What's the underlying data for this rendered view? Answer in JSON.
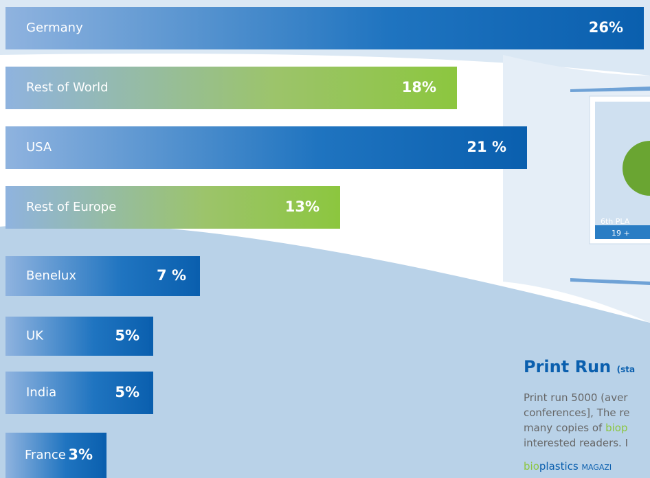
{
  "chart_data": {
    "type": "hbar",
    "categories": [
      "Germany",
      "Rest of World",
      "USA",
      "Rest of Europe",
      "Benelux",
      "UK",
      "India",
      "France"
    ],
    "values": [
      26,
      18,
      21,
      13,
      7,
      5,
      5,
      3
    ],
    "value_labels": [
      "26%",
      "18%",
      "21 %",
      "13%",
      "7 %",
      "5%",
      "5%",
      "3%"
    ],
    "colors": [
      "#0a5fae",
      "#8cc63f",
      "#0a5fae",
      "#8cc63f",
      "#0a5fae",
      "#0a5fae",
      "#0a5fae",
      "#0a5fae"
    ]
  },
  "sidebar": {
    "heading": "Print Run",
    "heading_note": "(sta",
    "lines": [
      "Print run 5000 (aver",
      "conferences], The re",
      "many copies of ",
      "interested readers. I"
    ],
    "highlight": "biop",
    "brand": [
      "bio",
      "plastics",
      "MAGAZI"
    ],
    "poster": [
      "6th PLA",
      "19 + "
    ]
  }
}
